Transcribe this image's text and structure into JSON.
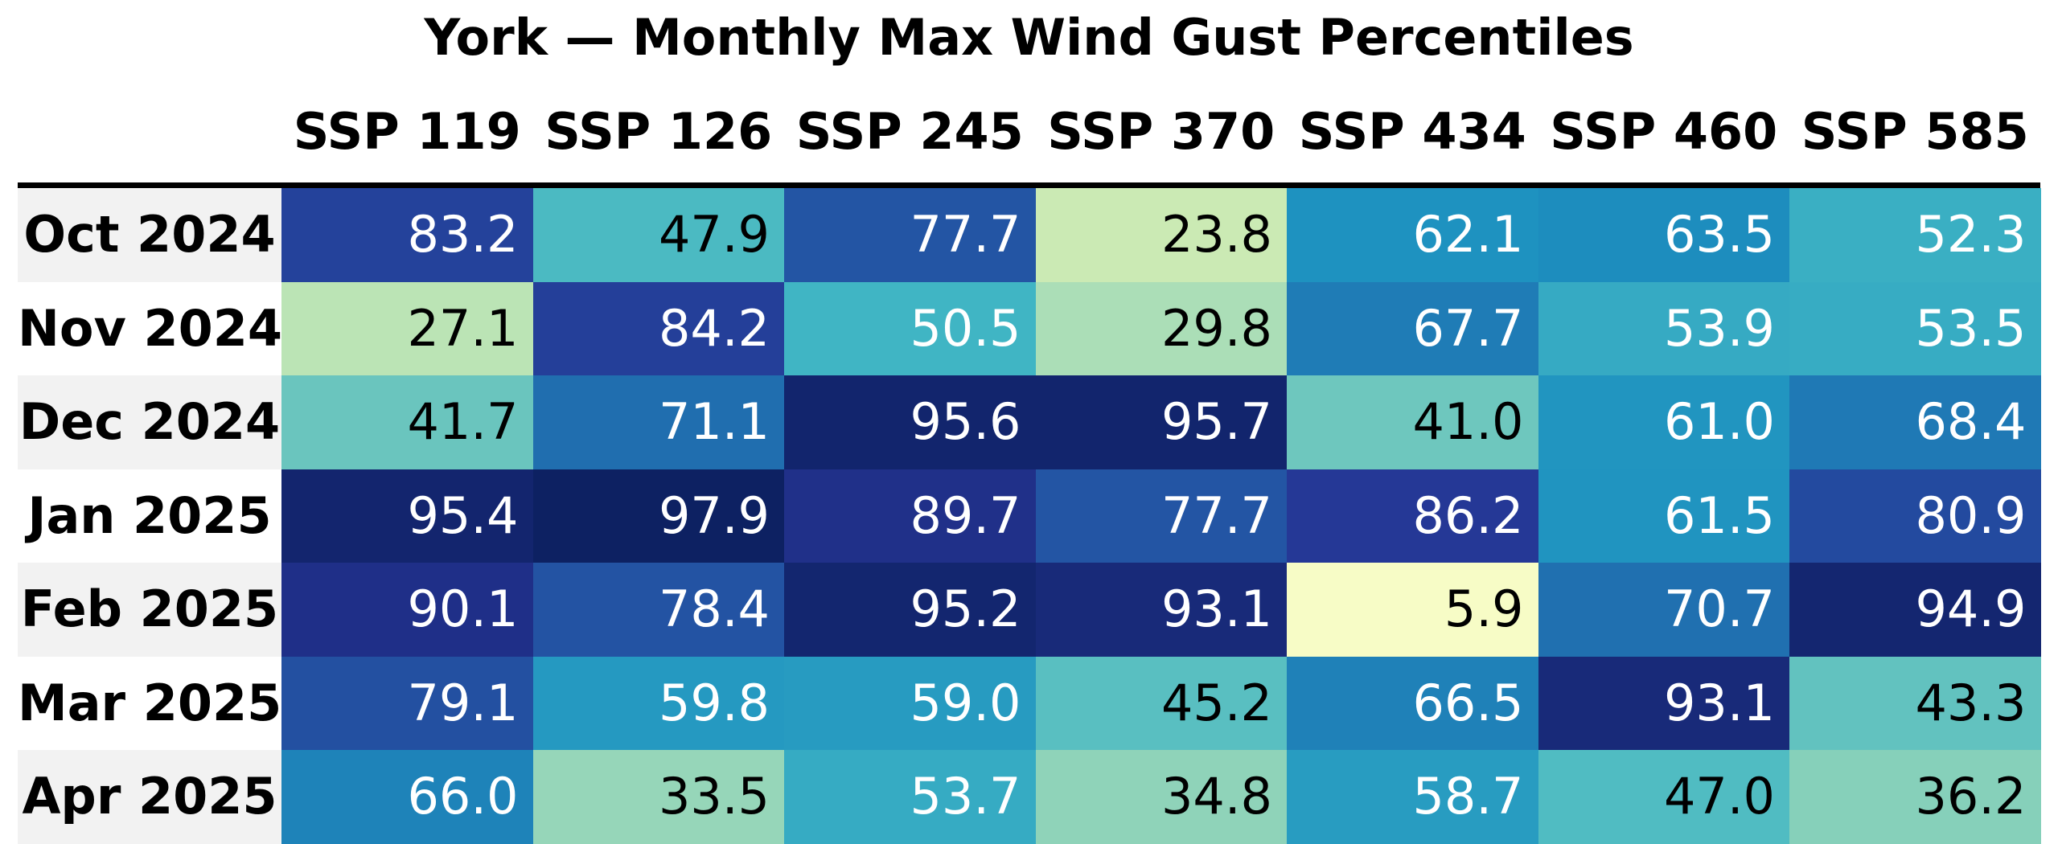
{
  "title": "York — Monthly Max Wind Gust Percentiles",
  "chart_data": {
    "type": "heatmap",
    "title": "York — Monthly Max Wind Gust Percentiles",
    "columns": [
      "SSP 119",
      "SSP 126",
      "SSP 245",
      "SSP 370",
      "SSP 434",
      "SSP 460",
      "SSP 585"
    ],
    "rows": [
      "Oct 2024",
      "Nov 2024",
      "Dec 2024",
      "Jan 2025",
      "Feb 2025",
      "Mar 2025",
      "Apr 2025"
    ],
    "values": [
      [
        83.2,
        47.9,
        77.7,
        23.8,
        62.1,
        63.5,
        52.3
      ],
      [
        27.1,
        84.2,
        50.5,
        29.8,
        67.7,
        53.9,
        53.5
      ],
      [
        41.7,
        71.1,
        95.6,
        95.7,
        41.0,
        61.0,
        68.4
      ],
      [
        95.4,
        97.9,
        89.7,
        77.7,
        86.2,
        61.5,
        80.9
      ],
      [
        90.1,
        78.4,
        95.2,
        93.1,
        5.9,
        70.7,
        94.9
      ],
      [
        79.1,
        59.8,
        59.0,
        45.2,
        66.5,
        93.1,
        43.3
      ],
      [
        66.0,
        33.5,
        53.7,
        34.8,
        58.7,
        47.0,
        36.2
      ]
    ],
    "value_format_decimals": 1,
    "value_range": [
      0,
      100
    ],
    "colormap": {
      "name": "YlGnBu",
      "stops": [
        "#ffffd9",
        "#edf8b1",
        "#c7e9b4",
        "#7fcdbb",
        "#41b6c4",
        "#1d91c0",
        "#225ea8",
        "#253494",
        "#081d58"
      ]
    },
    "cell_text": {
      "light_text": "#ffffff",
      "dark_text": "#000000",
      "white_text_threshold": 50
    },
    "style": {
      "row_label_bg_even": "#f2f2f2",
      "row_label_bg_odd": "#ffffff",
      "header_rule_color": "#000000",
      "title_color": "#000000",
      "header_text_color": "#000000",
      "legend_position": "none",
      "grid": false
    }
  }
}
